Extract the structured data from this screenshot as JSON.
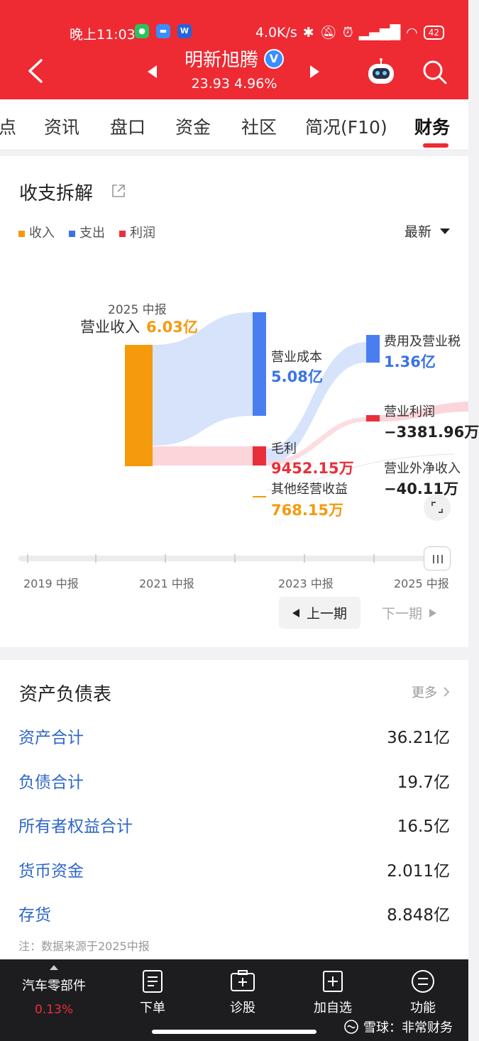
{
  "status_bar": {
    "time": "晚上11:03",
    "net_speed": "4.0K/s",
    "battery": "42"
  },
  "header": {
    "stock_name": "明新旭腾",
    "verified_mark": "V",
    "price_change": "23.93 4.96%"
  },
  "tabs": [
    "点",
    "资讯",
    "盘口",
    "资金",
    "社区",
    "简况(F10)",
    "财务"
  ],
  "breakdown": {
    "title": "收支拆解",
    "legend": [
      {
        "label": "收入",
        "color": "#f59a0c"
      },
      {
        "label": "支出",
        "color": "#3b73e6"
      },
      {
        "label": "利润",
        "color": "#e8303a"
      }
    ],
    "period_select": "最新",
    "period": "2025 中报",
    "revenue_label": "营业收入",
    "revenue_value": "6.03亿",
    "cost_label": "营业成本",
    "cost_value": "5.08亿",
    "gross_label": "毛利",
    "gross_value": "9452.15万",
    "other_label": "其他经营收益",
    "other_value": "768.15万",
    "expense_label": "费用及营业税",
    "expense_value": "1.36亿",
    "op_profit_label": "营业利润",
    "op_profit_value": "−3381.96万",
    "nonop_label": "营业外净收入",
    "nonop_value": "−40.11万",
    "timeline_labels": [
      "2019 中报",
      "2021 中报",
      "2023 中报",
      "2025 中报"
    ],
    "prev_label": "上一期",
    "next_label": "下一期"
  },
  "balance_sheet": {
    "title": "资产负债表",
    "more_label": "更多",
    "rows": [
      {
        "label": "资产合计",
        "value": "36.21亿"
      },
      {
        "label": "负债合计",
        "value": "19.7亿"
      },
      {
        "label": "所有者权益合计",
        "value": "16.5亿"
      },
      {
        "label": "货币资金",
        "value": "2.011亿"
      },
      {
        "label": "存货",
        "value": "8.848亿"
      }
    ],
    "note": "注：数据来源于2025中报"
  },
  "bottom_bar": {
    "sector_name": "汽车零部件",
    "sector_change": "0.13%",
    "items": [
      "下单",
      "诊股",
      "加自选",
      "功能"
    ],
    "watermark": "雪球：非常财务"
  }
}
